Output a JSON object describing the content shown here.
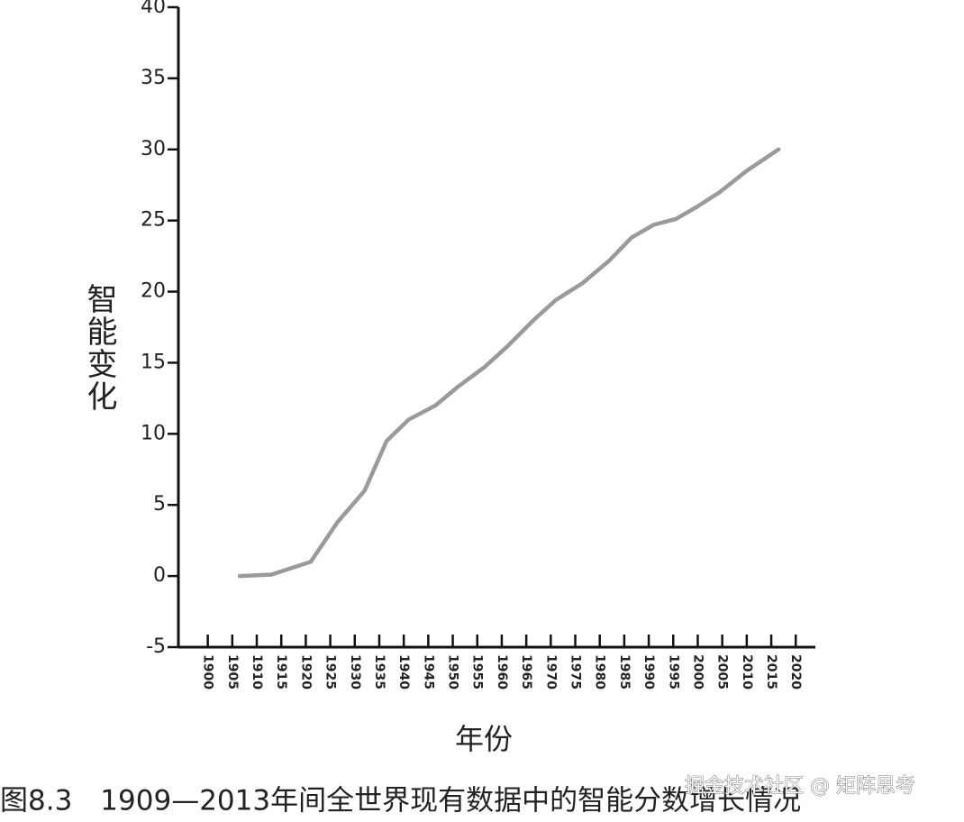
{
  "chart_data": {
    "type": "line",
    "y_label": "智能变化",
    "x_label": "年份",
    "caption": "图8.3　1909—2013年间全世界现有数据中的智能分数增长情况",
    "watermark": "掘金技术社区 @ 矩阵思考",
    "x": [
      1906.5,
      1913,
      1916.5,
      1921,
      1926.5,
      1932,
      1936.5,
      1941,
      1946.5,
      1951,
      1956.5,
      1961,
      1966.5,
      1971,
      1976.5,
      1982,
      1986.5,
      1991,
      1995.5,
      2000,
      2004.5,
      2010,
      2016.5
    ],
    "series": [
      {
        "color": "#9a9a9a",
        "values": [
          0,
          0.1,
          0.5,
          1,
          3.8,
          6,
          9.5,
          11,
          12,
          13.3,
          14.7,
          16.1,
          18,
          19.4,
          20.6,
          22.2,
          23.8,
          24.7,
          25.1,
          26,
          27,
          28.5,
          30
        ]
      }
    ],
    "xlim": [
      1894,
      2024
    ],
    "xticks": [
      1900,
      1905,
      1910,
      1915,
      1920,
      1925,
      1930,
      1935,
      1940,
      1945,
      1950,
      1955,
      1960,
      1965,
      1970,
      1975,
      1980,
      1985,
      1990,
      1995,
      2000,
      2005,
      2010,
      2015,
      2020
    ],
    "ylim": [
      -5,
      40
    ],
    "yticks": [
      -5,
      0,
      5,
      10,
      15,
      20,
      25,
      30,
      35,
      40
    ],
    "grid": false
  }
}
